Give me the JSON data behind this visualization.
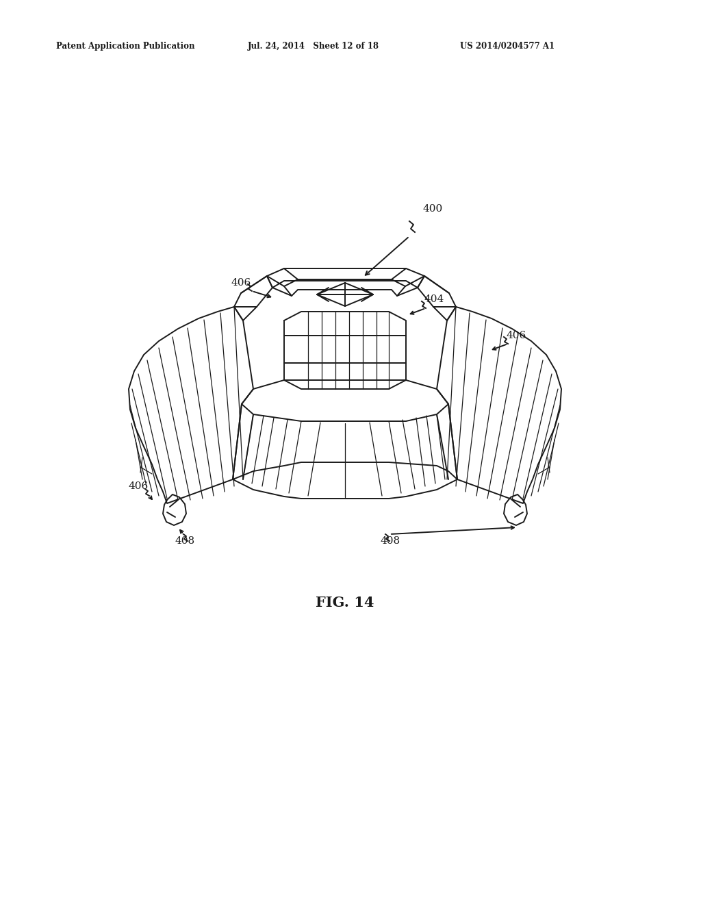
{
  "bg_color": "#ffffff",
  "line_color": "#1a1a1a",
  "header_left": "Patent Application Publication",
  "header_mid": "Jul. 24, 2014   Sheet 12 of 18",
  "header_right": "US 2014/0204577 A1",
  "fig_label": "FIG. 14",
  "lw_main": 1.4,
  "lw_thin": 0.9
}
